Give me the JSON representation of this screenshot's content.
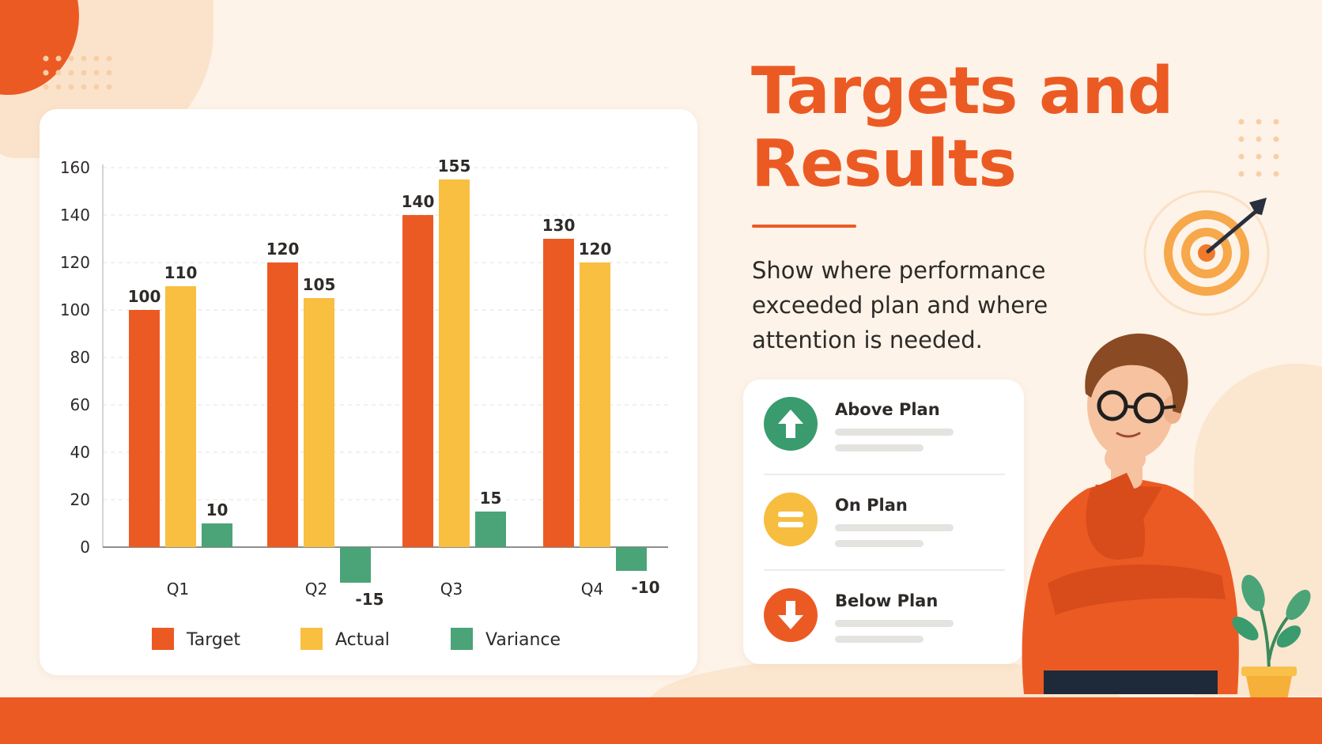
{
  "slide": {
    "title": "Targets and Results",
    "subtitle": "Show where performance exceeded plan and where attention is needed."
  },
  "status_legend": [
    {
      "label": "Above Plan",
      "icon": "arrow-up-icon",
      "color": "#3a9b6e"
    },
    {
      "label": "On Plan",
      "icon": "equals-icon",
      "color": "#f6bd3e"
    },
    {
      "label": "Below Plan",
      "icon": "arrow-down-icon",
      "color": "#ec5a24"
    }
  ],
  "colors": {
    "accent": "#ec5a24",
    "target": "#ec5a24",
    "actual": "#f9bf41",
    "variance": "#4aa477",
    "background": "#fdf3e8"
  },
  "chart_data": {
    "type": "bar",
    "title": "",
    "xlabel": "",
    "ylabel": "",
    "categories": [
      "Q1",
      "Q2",
      "Q3",
      "Q4"
    ],
    "series": [
      {
        "name": "Target",
        "values": [
          100,
          120,
          140,
          130
        ]
      },
      {
        "name": "Actual",
        "values": [
          110,
          105,
          155,
          120
        ]
      },
      {
        "name": "Variance",
        "values": [
          10,
          -15,
          15,
          -10
        ]
      }
    ],
    "value_labels": [
      [
        "100",
        "120",
        "140",
        "130"
      ],
      [
        "110",
        "105",
        "155",
        "120"
      ],
      [
        "10",
        "-15",
        "15",
        "-10"
      ]
    ],
    "ylim": [
      -15,
      160
    ],
    "yticks": [
      0,
      20,
      40,
      60,
      80,
      100,
      120,
      140,
      160
    ],
    "grid": true,
    "legend_position": "bottom"
  }
}
